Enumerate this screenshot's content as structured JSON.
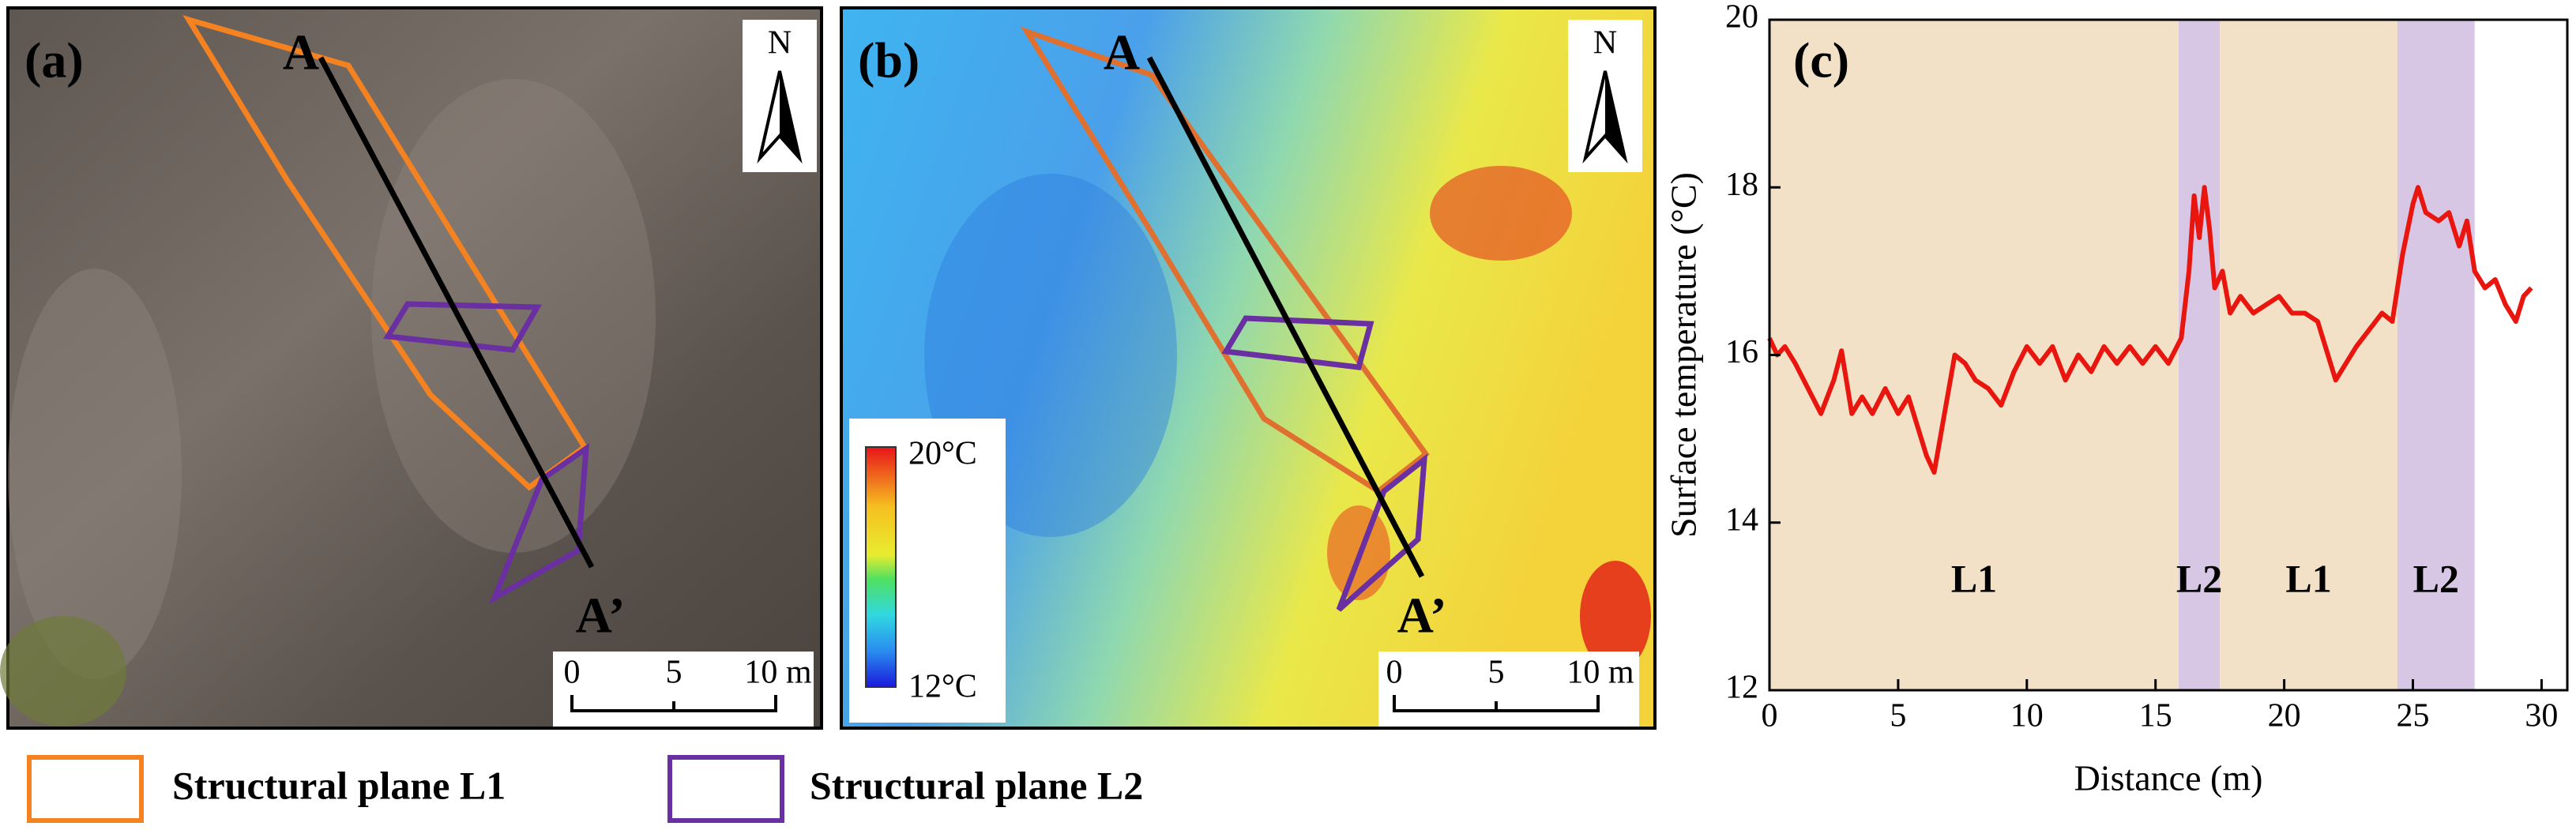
{
  "panels": [
    {
      "label": "(a)",
      "start": "A",
      "end": "A’",
      "north": "N",
      "scale": [
        "0",
        "5",
        "10 m"
      ]
    },
    {
      "label": "(b)",
      "start": "A",
      "end": "A’",
      "north": "N",
      "scale": [
        "0",
        "5",
        "10 m"
      ],
      "colorbar": [
        "20°C",
        "12°C"
      ]
    }
  ],
  "legend": [
    "Structural plane L1",
    "Structural plane L2"
  ],
  "chart_data": {
    "type": "line",
    "label": "(c)",
    "x_label": "Distance (m)",
    "y_label": "Surface temperature (°C)",
    "xlim": [
      0,
      31
    ],
    "ylim": [
      12,
      20
    ],
    "xticks": [
      0,
      5,
      10,
      15,
      20,
      25,
      30
    ],
    "yticks": [
      12,
      14,
      16,
      18,
      20
    ],
    "regions": [
      {
        "name": "L1",
        "start": 0,
        "end": 15.9,
        "color": "#f2e1c6"
      },
      {
        "name": "L2",
        "start": 15.9,
        "end": 17.5,
        "color": "#d7c7e4"
      },
      {
        "name": "L1",
        "start": 17.5,
        "end": 24.4,
        "color": "#f2e1c6"
      },
      {
        "name": "L2",
        "start": 24.4,
        "end": 27.4,
        "color": "#d7c7e4"
      }
    ],
    "x": [
      0,
      0.3,
      0.6,
      1,
      1.5,
      2,
      2.5,
      2.8,
      3.2,
      3.6,
      4,
      4.5,
      5,
      5.4,
      5.8,
      6.1,
      6.4,
      6.8,
      7.2,
      7.6,
      8,
      8.5,
      9,
      9.5,
      10,
      10.5,
      11,
      11.5,
      12,
      12.5,
      13,
      13.5,
      14,
      14.5,
      15,
      15.5,
      16,
      16.3,
      16.5,
      16.7,
      16.9,
      17.1,
      17.3,
      17.6,
      17.9,
      18.3,
      18.8,
      19.3,
      19.8,
      20.3,
      20.8,
      21.3,
      21.7,
      22,
      22.4,
      22.8,
      23.3,
      23.8,
      24.2,
      24.6,
      25,
      25.2,
      25.5,
      26,
      26.4,
      26.8,
      27.1,
      27.4,
      27.8,
      28.2,
      28.6,
      29,
      29.3,
      29.6
    ],
    "series": [
      {
        "color": "#e8160f",
        "values": [
          16.2,
          16.0,
          16.1,
          15.9,
          15.6,
          15.3,
          15.7,
          16.05,
          15.3,
          15.5,
          15.3,
          15.6,
          15.3,
          15.5,
          15.1,
          14.8,
          14.6,
          15.3,
          16.0,
          15.9,
          15.7,
          15.6,
          15.4,
          15.8,
          16.1,
          15.9,
          16.1,
          15.7,
          16.0,
          15.8,
          16.1,
          15.9,
          16.1,
          15.9,
          16.1,
          15.9,
          16.2,
          17.0,
          17.9,
          17.4,
          18.0,
          17.5,
          16.8,
          17.0,
          16.5,
          16.7,
          16.5,
          16.6,
          16.7,
          16.5,
          16.5,
          16.4,
          16.0,
          15.7,
          15.9,
          16.1,
          16.3,
          16.5,
          16.4,
          17.2,
          17.8,
          18.0,
          17.7,
          17.6,
          17.7,
          17.3,
          17.6,
          17.0,
          16.8,
          16.9,
          16.6,
          16.4,
          16.7,
          16.8
        ]
      }
    ]
  }
}
